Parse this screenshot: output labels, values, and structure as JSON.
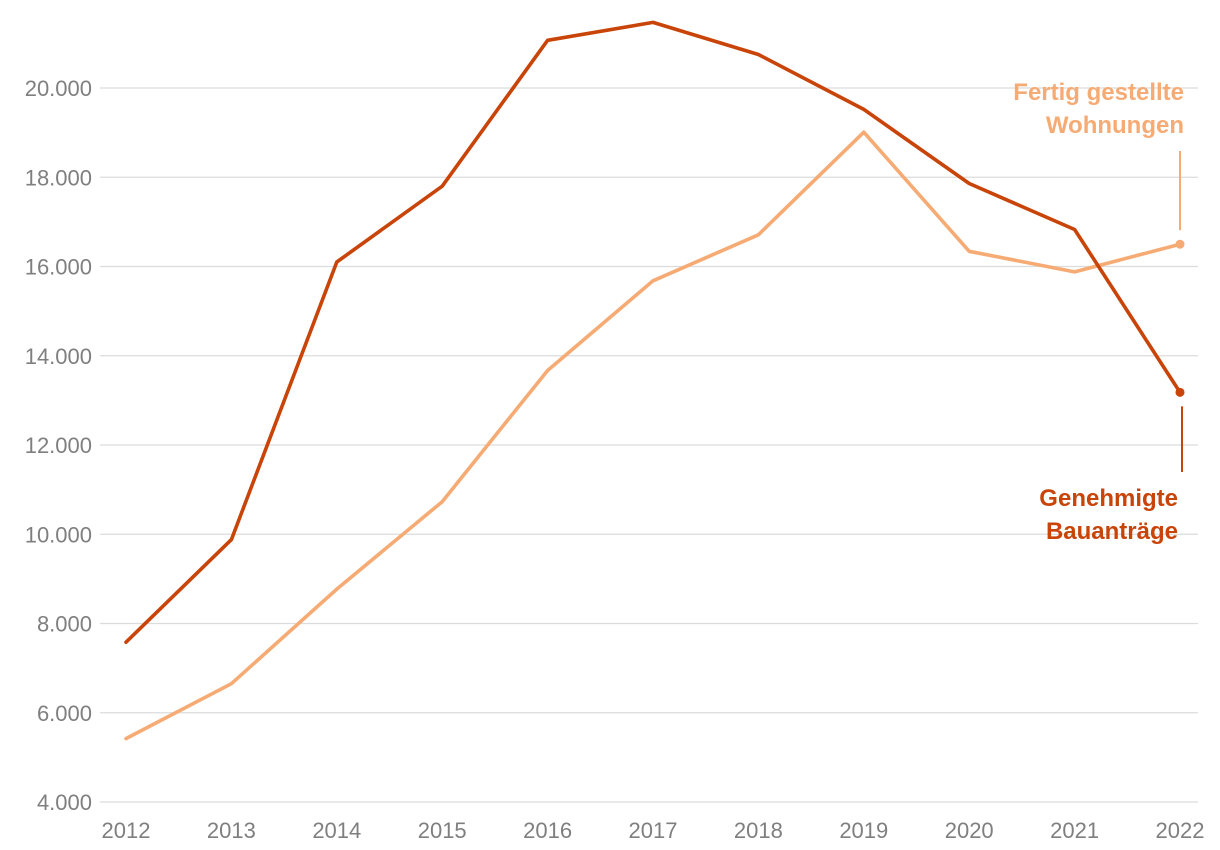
{
  "chart_data": {
    "type": "line",
    "x": [
      "2012",
      "2013",
      "2014",
      "2015",
      "2016",
      "2017",
      "2018",
      "2019",
      "2020",
      "2021",
      "2022"
    ],
    "ylim": [
      4000,
      21500
    ],
    "yticks": [
      4000,
      6000,
      8000,
      10000,
      12000,
      14000,
      16000,
      18000,
      20000
    ],
    "ytick_labels": [
      "4.000",
      "6.000",
      "8.000",
      "10.000",
      "12.000",
      "14.000",
      "16.000",
      "18.000",
      "20.000"
    ],
    "grid": true,
    "series": [
      {
        "name": "Genehmigte Bauanträge",
        "label_lines": [
          "Genehmigte",
          "Bauanträge"
        ],
        "color": "#c84409",
        "values": [
          7580,
          9880,
          16100,
          17800,
          21070,
          21470,
          20750,
          19520,
          17860,
          16830,
          13180
        ]
      },
      {
        "name": "Fertig gestellte Wohnungen",
        "label_lines": [
          "Fertig gestellte",
          "Wohnungen"
        ],
        "color": "#f6ab74",
        "values": [
          5420,
          6650,
          8770,
          10730,
          13670,
          15680,
          16710,
          19010,
          16340,
          15880,
          16500
        ]
      }
    ]
  }
}
